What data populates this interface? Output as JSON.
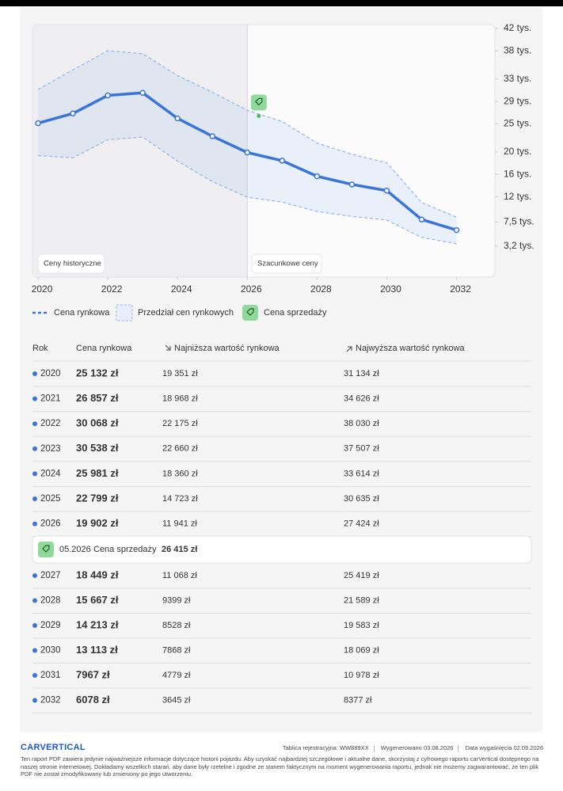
{
  "chart_data": {
    "type": "line",
    "x": [
      2020,
      2021,
      2022,
      2023,
      2024,
      2025,
      2026,
      2027,
      2028,
      2029,
      2030,
      2031,
      2032
    ],
    "xlim": [
      2019.84,
      2033.1
    ],
    "xticks": [
      2020,
      2022,
      2024,
      2026,
      2028,
      2030,
      2032
    ],
    "ylim": [
      -2300,
      42700
    ],
    "yticks": [
      {
        "value": 42000,
        "label": "42 tys."
      },
      {
        "value": 38000,
        "label": "38 tys."
      },
      {
        "value": 33000,
        "label": "33 tys."
      },
      {
        "value": 29000,
        "label": "29 tys."
      },
      {
        "value": 25000,
        "label": "25 tys."
      },
      {
        "value": 20000,
        "label": "20 tys."
      },
      {
        "value": 16000,
        "label": "16 tys."
      },
      {
        "value": 12000,
        "label": "12 tys."
      },
      {
        "value": 7500,
        "label": "7,5 tys."
      },
      {
        "value": 3200,
        "label": "3,2 tys."
      }
    ],
    "history_end": 2026,
    "history_label": "Ceny historyczne",
    "forecast_label": "Szacunkowe ceny",
    "series": [
      {
        "name": "Cena rynkowa",
        "color": "#3a74d8",
        "values": [
          25132,
          26857,
          30068,
          30538,
          25981,
          22799,
          19902,
          18449,
          15667,
          14213,
          13113,
          7967,
          6078
        ],
        "value_labels": [
          "25 132 zł",
          "26 857 zł",
          "30 068 zł",
          "30 538 zł",
          "25 981 zł",
          "22 799 zł",
          "19 902 zł",
          "18 449 zł",
          "15 667 zł",
          "14 213 zł",
          "13 113 zł",
          "7967 zł",
          "6078 zł"
        ]
      }
    ],
    "band": {
      "name": "Przedział cen rynkowych",
      "color": "#8fb3ec",
      "low": [
        19351,
        18968,
        22175,
        22660,
        18360,
        14723,
        11941,
        11068,
        9399,
        8528,
        7868,
        4779,
        3645
      ],
      "low_labels": [
        "19 351 zł",
        "18 968 zł",
        "22 175 zł",
        "22 660 zł",
        "18 360 zł",
        "14 723 zł",
        "11 941 zł",
        "11 068 zł",
        "9399 zł",
        "8528 zł",
        "7868 zł",
        "4779 zł",
        "3645 zł"
      ],
      "high": [
        31134,
        34626,
        38030,
        37507,
        33614,
        30635,
        27424,
        25419,
        21589,
        19583,
        18069,
        10978,
        8377
      ],
      "high_labels": [
        "31 134 zł",
        "34 626 zł",
        "38 030 zł",
        "37 507 zł",
        "33 614 zł",
        "30 635 zł",
        "27 424 zł",
        "25 419 zł",
        "21 589 zł",
        "19 583 zł",
        "18 069 zł",
        "10 978 zł",
        "8377 zł"
      ]
    },
    "sale": {
      "name": "Cena sprzedaży",
      "color": "#4cbc5e",
      "date_label": "05.2026",
      "x": 2026.33,
      "value": 26415,
      "value_label": "26 415 zł"
    }
  },
  "table": {
    "headers": [
      "Rok",
      "Cena rynkowa",
      "Najniższa wartość rynkowa",
      "Najwyższa wartość rynkowa"
    ]
  },
  "footer": {
    "logo": "CARVERTICAL",
    "plate_label": "Tablica rejestracyjna:",
    "plate": "WW889XX",
    "generated_label": "Wygenerowano",
    "generated": "03.08.2026",
    "expiry_label": "Data wygaśnięcia",
    "expiry": "02.09.2026",
    "disclaimer": "Ten raport PDF zawiera jedynie najważniejsze informacje dotyczące historii pojazdu. Aby uzyskać najbardziej szczegółowe i aktualne dane, skorzystaj z cyfrowego raportu carVertical dostępnego na naszej stronie internetowej. Dokładamy wszelkich starań, aby dane były rzetelne i zgodne ze stanem faktycznym na moment wygenerowania raportu, jednak nie możemy zagwarantować, że ten plik PDF nie został zmodyfikowany lub zmieniony po jego utworzeniu."
  }
}
